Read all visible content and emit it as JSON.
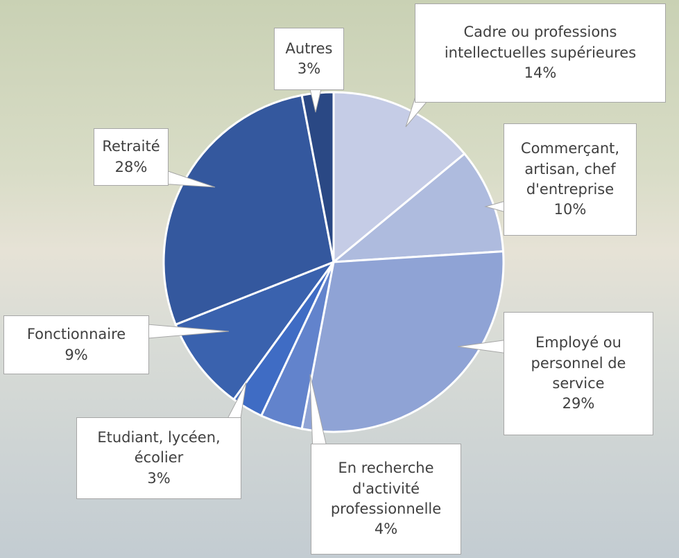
{
  "chart_data": {
    "type": "pie",
    "categories": [
      "Cadre ou professions intellectuelles supérieures",
      "Commerçant, artisan, chef d'entreprise",
      "Employé ou personnel de service",
      "En recherche d'activité professionnelle",
      "Etudiant, lycéen, écolier",
      "Fonctionnaire",
      "Retraité",
      "Autres"
    ],
    "values": [
      14,
      10,
      29,
      4,
      3,
      9,
      28,
      3
    ],
    "value_labels": [
      "14%",
      "10%",
      "29%",
      "4%",
      "3%",
      "9%",
      "28%",
      "3%"
    ],
    "colors": [
      "#c5cce6",
      "#aebbde",
      "#8fa3d5",
      "#6283cc",
      "#3f6cc4",
      "#3a62ae",
      "#34589e",
      "#2a4884"
    ]
  }
}
